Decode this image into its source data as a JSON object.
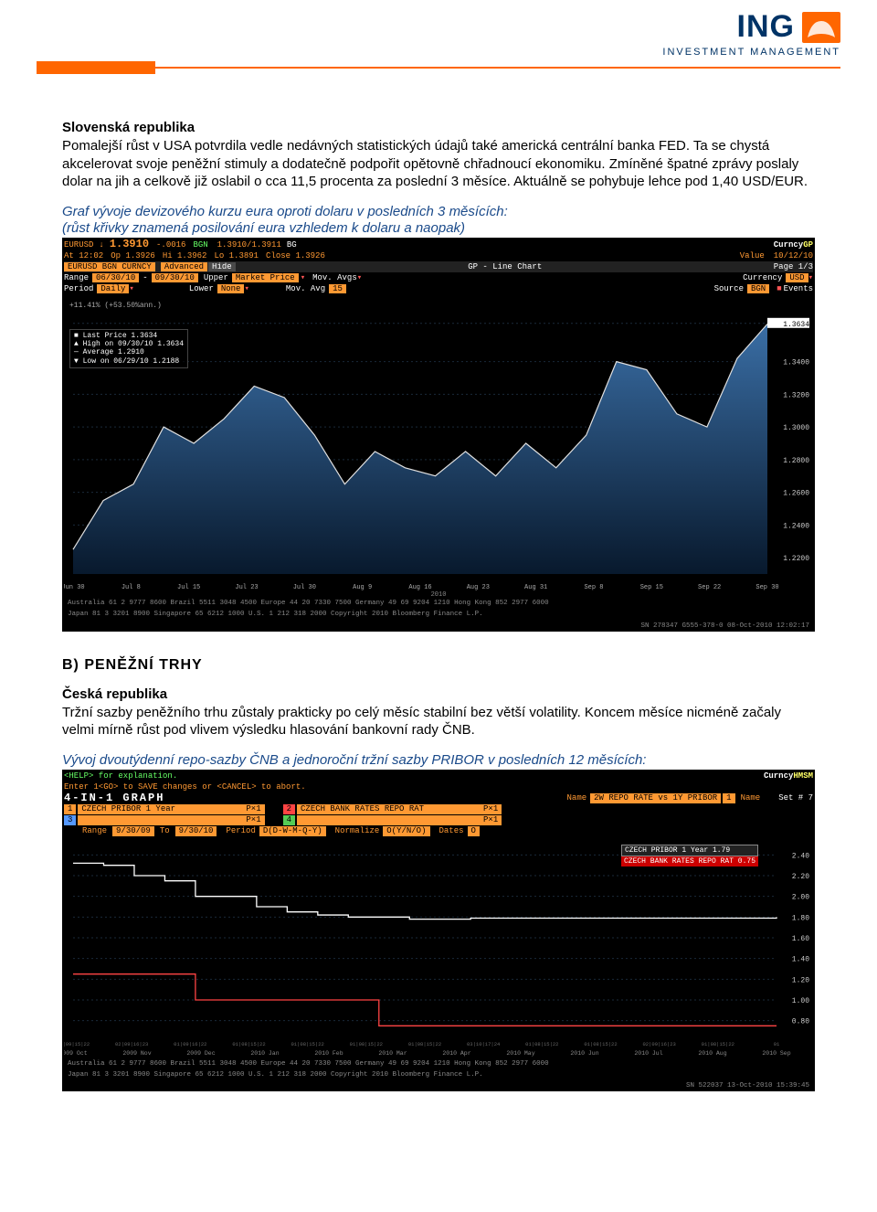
{
  "brand": {
    "name": "ING",
    "subline": "INVESTMENT MANAGEMENT",
    "name_color": "#003366",
    "accent_color": "#ff6600"
  },
  "section_a": {
    "title": "Slovenská republika",
    "body": "Pomalejší růst v USA potvrdila vedle nedávných statistických údajů také americká centrální banka FED. Ta se chystá akcelerovat svoje peněžní stimuly a dodatečně podpořit opětovně chřadnoucí ekonomiku. Zmíněné špatné zprávy poslaly dolar na jih a celkově již oslabil o cca 11,5 procenta za poslední 3 měsíce. Aktuálně se pohybuje lehce pod 1,40 USD/EUR.",
    "caption_line1": "Graf vývoje devizového kurzu eura oproti dolaru v posledních 3 měsících:",
    "caption_line2": "(růst křivky znamená posilování eura vzhledem k dolaru a naopak)"
  },
  "terminal1": {
    "head": {
      "pair": "EURUSD",
      "arrow": "↓",
      "price": "1.3910",
      "chg": "-.0016",
      "src": "BGN",
      "bidask": "1.3910/1.3911",
      "bg": "BG",
      "prod": "CurncyGP"
    },
    "sub": {
      "at": "At 12:02",
      "op": "Op 1.3926",
      "hi": "Hi 1.3962",
      "lo": "Lo 1.3891",
      "close": "Close 1.3926",
      "value": "Value",
      "date": "10/12/10"
    },
    "bar": {
      "sym": "EURUSD BGN CURNCY",
      "tab1": "Advanced",
      "tab2": "Hide",
      "right": "GP - Line Chart",
      "page": "Page 1/3"
    },
    "row1": {
      "range_lbl": "Range",
      "d1": "06/30/10",
      "sep": "-",
      "d2": "09/30/10",
      "upper": "Upper",
      "mp": "Market Price",
      "ma": "Mov. Avgs",
      "cur": "Currency",
      "usd": "USD"
    },
    "row2": {
      "period": "Period",
      "daily": "Daily",
      "lower": "Lower",
      "none": "None",
      "ma": "Mov. Avg",
      "n": "15",
      "src": "Source",
      "bgn": "BGN",
      "ev": "Events"
    },
    "annot": "+11.41% (+53.50%ann.)",
    "legend": {
      "l1": "Last Price   1.3634",
      "l2": "High on 09/30/10  1.3634",
      "l3": "Average      1.2910",
      "l4": "Low on 06/29/10   1.2188"
    },
    "yaxis": {
      "ticks": [
        1.3634,
        1.34,
        1.32,
        1.3,
        1.28,
        1.26,
        1.24,
        1.22
      ],
      "min": 1.21,
      "max": 1.37
    },
    "xaxis": [
      "Jun 30",
      "Jul 8",
      "Jul 15",
      "Jul 23",
      "Jul 30",
      "Aug 9",
      "Aug 16",
      "Aug 23",
      "Aug 31",
      "Sep 8",
      "Sep 15",
      "Sep 22",
      "Sep 30"
    ],
    "series_y": [
      1.225,
      1.255,
      1.265,
      1.3,
      1.29,
      1.305,
      1.325,
      1.318,
      1.295,
      1.265,
      1.285,
      1.275,
      1.27,
      1.285,
      1.27,
      1.29,
      1.275,
      1.295,
      1.34,
      1.335,
      1.308,
      1.3,
      1.342,
      1.363
    ],
    "line_color": "#e0e0e0",
    "area_top_color": "#3a6ea5",
    "area_bottom_color": "#08192d",
    "grid_color": "#1a2a3a",
    "bg_color": "#000000",
    "footer1": "Australia 61 2 9777 8600 Brazil 5511 3048 4500 Europe 44 20 7330 7500 Germany 49 69 9204 1210 Hong Kong 852 2977 6000",
    "footer2": "Japan 81 3 3201 8900     Singapore 65 6212 1000     U.S. 1 212 318 2000     Copyright 2010 Bloomberg Finance L.P.",
    "footer3": "SN 278347  G555-378-0  08-Oct-2010 12:02:17"
  },
  "section_b": {
    "heading": "B) PENĚŽNÍ TRHY",
    "title": "Česká republika",
    "body": "Tržní sazby peněžního trhu zůstaly prakticky po celý měsíc stabilní bez větší volatility. Koncem měsíce nicméně začaly velmi mírně růst pod vlivem výsledku hlasování bankovní rady ČNB.",
    "caption": "Vývoj dvoutýdenní repo-sazby ČNB a jednoroční tržní sazby PRIBOR v posledních 12 měsících:"
  },
  "terminal2": {
    "l1": "<HELP> for explanation.",
    "l2": "Enter 1<GO> to SAVE changes or <CANCEL> to abort.",
    "head": "4-IN-1 GRAPH",
    "prod": "CurncyHMSM",
    "name_lbl": "Name",
    "name_val": "2W REPO RATE vs 1Y PRIBOR",
    "name_lbl2": "Name",
    "set": "Set # 7",
    "s1_lbl": "1",
    "s1": "CZECH PRIBOR  1 Year",
    "s1p": "P×1",
    "s2_lbl": "2",
    "s2": "CZECH BANK RATES REPO RAT",
    "s2p": "P×1",
    "s3_lbl": "3",
    "s3p": "P×1",
    "s4_lbl": "4",
    "s4p": "P×1",
    "rng_lbl": "Range",
    "d1": "9/30/09",
    "to": "To",
    "d2": "9/30/10",
    "per_lbl": "Period",
    "per": "D(D-W-M-Q-Y)",
    "norm_lbl": "Normalize",
    "norm": "O(Y/N/O)",
    "dates_lbl": "Dates",
    "dates": "O",
    "legend": {
      "r1": "CZECH PRIBOR 1 Year       1.79",
      "r2": "CZECH BANK RATES REPO RAT 0.75"
    },
    "yaxis": {
      "ticks": [
        2.4,
        2.2,
        2.0,
        1.8,
        1.6,
        1.4,
        1.2,
        1.0,
        0.8
      ],
      "min": 0.7,
      "max": 2.5
    },
    "xaxis": [
      "01|09|15|22",
      "02|09|16|23",
      "01|09|16|22",
      "01|08|15|22",
      "01|08|15|22",
      "01|08|15|22",
      "01|08|15|22",
      "03|10|17|24",
      "01|08|15|22",
      "01|08|15|22",
      "02|09|16|23",
      "01|08|15|22",
      "01"
    ],
    "xmon": [
      "2009 Oct",
      "2009 Nov",
      "2009 Dec",
      "2010 Jan",
      "2010 Feb",
      "2010 Mar",
      "2010 Apr",
      "2010 May",
      "2010 Jun",
      "2010 Jul",
      "2010 Aug",
      "2010 Sep"
    ],
    "pribor_y": [
      2.32,
      2.3,
      2.2,
      2.15,
      2.0,
      2.0,
      1.9,
      1.85,
      1.82,
      1.8,
      1.8,
      1.78,
      1.78,
      1.79,
      1.79,
      1.79,
      1.79,
      1.79,
      1.79,
      1.79,
      1.79,
      1.79,
      1.79,
      1.8
    ],
    "repo_y": [
      1.25,
      1.25,
      1.25,
      1.25,
      1.0,
      1.0,
      1.0,
      1.0,
      1.0,
      1.0,
      0.75,
      0.75,
      0.75,
      0.75,
      0.75,
      0.75,
      0.75,
      0.75,
      0.75,
      0.75,
      0.75,
      0.75,
      0.75,
      0.75
    ],
    "pribor_color": "#ffffff",
    "repo_color": "#ff4444",
    "grid_color": "#1a2a3a",
    "bg_color": "#000000",
    "footer1": "Australia 61 2 9777 8600 Brazil 5511 3048 4500 Europe 44 20 7330 7500 Germany 49 69 9204 1210 Hong Kong 852 2977 6000",
    "footer2": "Japan 81 3 3201 8900     Singapore 65 6212 1000     U.S. 1 212 318 2000     Copyright 2010 Bloomberg Finance L.P.",
    "footer3": "SN 522037  13-Oct-2010 15:39:45"
  }
}
